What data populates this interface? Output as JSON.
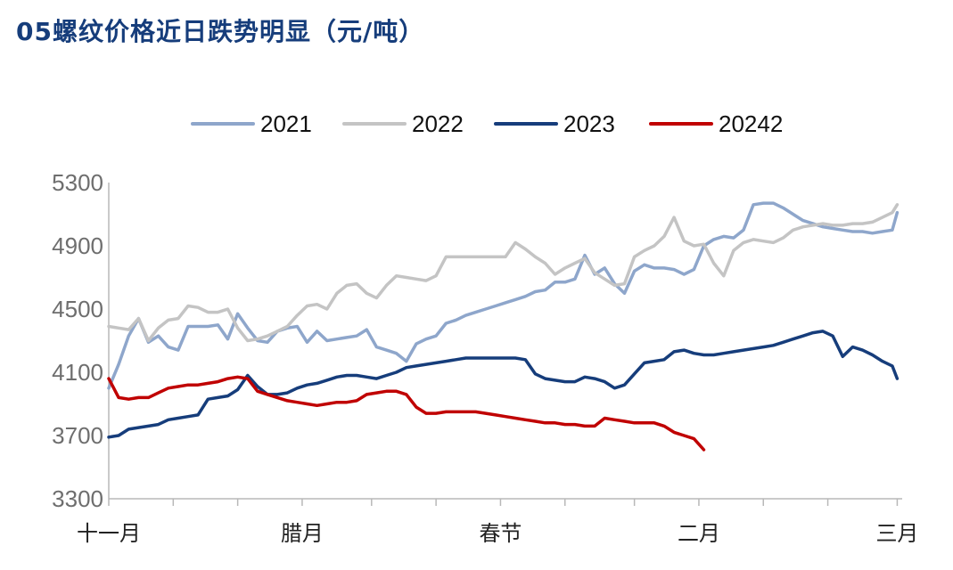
{
  "chart_data": {
    "type": "line",
    "title": "05螺纹价格近日跌势明显（元/吨）",
    "xlabel": "",
    "ylabel": "",
    "ylim": [
      3300,
      5300
    ],
    "yticks": [
      3300,
      3700,
      4100,
      4500,
      4900,
      5300
    ],
    "xlim": [
      0,
      160
    ],
    "xtick_positions": [
      0,
      13,
      26,
      39,
      53,
      66,
      79,
      92,
      106,
      119,
      132,
      145,
      159
    ],
    "xtick_labels": [
      {
        "x": 0,
        "label": "十一月"
      },
      {
        "x": 39,
        "label": "腊月"
      },
      {
        "x": 79,
        "label": "春节"
      },
      {
        "x": 119,
        "label": "二月"
      },
      {
        "x": 159,
        "label": "三月"
      }
    ],
    "legend_position": "top",
    "grid": false,
    "series": [
      {
        "name": "2021",
        "color": "#8ea6cb",
        "x": [
          0,
          2,
          4,
          6,
          8,
          10,
          12,
          14,
          16,
          18,
          20,
          22,
          24,
          26,
          28,
          30,
          32,
          34,
          36,
          38,
          40,
          42,
          44,
          46,
          48,
          50,
          52,
          54,
          56,
          58,
          60,
          62,
          64,
          66,
          68,
          70,
          72,
          74,
          76,
          78,
          80,
          82,
          84,
          86,
          88,
          90,
          92,
          94,
          96,
          98,
          100,
          102,
          104,
          106,
          108,
          110,
          112,
          114,
          116,
          118,
          120,
          122,
          124,
          126,
          128,
          130,
          132,
          134,
          136,
          138,
          140,
          142,
          144,
          146,
          148,
          150,
          152,
          154,
          156,
          158,
          159
        ],
        "values": [
          4000,
          4150,
          4330,
          4440,
          4290,
          4330,
          4260,
          4240,
          4390,
          4390,
          4390,
          4400,
          4310,
          4470,
          4380,
          4300,
          4290,
          4360,
          4380,
          4390,
          4290,
          4360,
          4300,
          4310,
          4320,
          4330,
          4370,
          4260,
          4240,
          4220,
          4170,
          4280,
          4310,
          4330,
          4410,
          4430,
          4460,
          4480,
          4500,
          4520,
          4540,
          4560,
          4580,
          4610,
          4620,
          4670,
          4670,
          4690,
          4840,
          4720,
          4760,
          4660,
          4600,
          4740,
          4780,
          4760,
          4760,
          4750,
          4720,
          4750,
          4900,
          4940,
          4960,
          4950,
          5000,
          5160,
          5170,
          5170,
          5140,
          5100,
          5060,
          5040,
          5020,
          5010,
          5000,
          4990,
          4990,
          4980,
          4990,
          5000,
          5110
        ]
      },
      {
        "name": "2022",
        "color": "#c4c4c4",
        "x": [
          0,
          2,
          4,
          6,
          8,
          10,
          12,
          14,
          16,
          18,
          20,
          22,
          24,
          26,
          28,
          30,
          32,
          34,
          36,
          38,
          40,
          42,
          44,
          46,
          48,
          50,
          52,
          54,
          56,
          58,
          60,
          62,
          64,
          66,
          68,
          70,
          72,
          74,
          76,
          78,
          80,
          82,
          84,
          86,
          88,
          90,
          92,
          94,
          96,
          98,
          100,
          102,
          104,
          106,
          108,
          110,
          112,
          114,
          116,
          118,
          120,
          122,
          124,
          126,
          128,
          130,
          132,
          134,
          136,
          138,
          140,
          142,
          144,
          146,
          148,
          150,
          152,
          154,
          156,
          158,
          159
        ],
        "values": [
          4390,
          4380,
          4370,
          4440,
          4300,
          4380,
          4430,
          4440,
          4520,
          4510,
          4480,
          4480,
          4500,
          4380,
          4300,
          4310,
          4330,
          4360,
          4390,
          4460,
          4520,
          4530,
          4500,
          4600,
          4650,
          4660,
          4600,
          4570,
          4650,
          4710,
          4700,
          4690,
          4680,
          4710,
          4830,
          4830,
          4830,
          4830,
          4830,
          4830,
          4830,
          4920,
          4880,
          4830,
          4790,
          4720,
          4760,
          4790,
          4820,
          4730,
          4690,
          4650,
          4660,
          4830,
          4870,
          4900,
          4960,
          5080,
          4930,
          4900,
          4910,
          4790,
          4710,
          4870,
          4920,
          4940,
          4930,
          4920,
          4950,
          5000,
          5020,
          5030,
          5040,
          5030,
          5030,
          5040,
          5040,
          5050,
          5080,
          5110,
          5160
        ]
      },
      {
        "name": "2023",
        "color": "#163d7b",
        "x": [
          0,
          2,
          4,
          6,
          8,
          10,
          12,
          14,
          16,
          18,
          20,
          22,
          24,
          26,
          28,
          30,
          32,
          34,
          36,
          38,
          40,
          42,
          44,
          46,
          48,
          50,
          52,
          54,
          56,
          58,
          60,
          62,
          64,
          66,
          68,
          70,
          72,
          74,
          76,
          78,
          80,
          82,
          84,
          86,
          88,
          90,
          92,
          94,
          96,
          98,
          100,
          102,
          104,
          106,
          108,
          110,
          112,
          114,
          116,
          118,
          120,
          122,
          124,
          126,
          128,
          130,
          132,
          134,
          136,
          138,
          140,
          142,
          144,
          146,
          148,
          150,
          152,
          154,
          156,
          158,
          159
        ],
        "values": [
          3690,
          3700,
          3740,
          3750,
          3760,
          3770,
          3800,
          3810,
          3820,
          3830,
          3930,
          3940,
          3950,
          3990,
          4080,
          4010,
          3960,
          3960,
          3970,
          4000,
          4020,
          4030,
          4050,
          4070,
          4080,
          4080,
          4070,
          4060,
          4080,
          4100,
          4130,
          4140,
          4150,
          4160,
          4170,
          4180,
          4190,
          4190,
          4190,
          4190,
          4190,
          4190,
          4180,
          4090,
          4060,
          4050,
          4040,
          4040,
          4070,
          4060,
          4040,
          4000,
          4020,
          4090,
          4160,
          4170,
          4180,
          4230,
          4240,
          4220,
          4210,
          4210,
          4220,
          4230,
          4240,
          4250,
          4260,
          4270,
          4290,
          4310,
          4330,
          4350,
          4360,
          4330,
          4200,
          4260,
          4240,
          4210,
          4170,
          4140,
          4060
        ]
      },
      {
        "name": "20242",
        "color": "#c00000",
        "x": [
          0,
          2,
          4,
          6,
          8,
          10,
          12,
          14,
          16,
          18,
          20,
          22,
          24,
          26,
          28,
          30,
          32,
          34,
          36,
          38,
          40,
          42,
          44,
          46,
          48,
          50,
          52,
          54,
          56,
          58,
          60,
          62,
          64,
          66,
          68,
          70,
          72,
          74,
          76,
          78,
          80,
          82,
          84,
          86,
          88,
          90,
          92,
          94,
          96,
          98,
          100,
          102,
          104,
          106,
          108,
          110,
          112,
          114,
          116,
          118,
          120
        ],
        "values": [
          4060,
          3940,
          3930,
          3940,
          3940,
          3970,
          4000,
          4010,
          4020,
          4020,
          4030,
          4040,
          4060,
          4070,
          4060,
          3980,
          3960,
          3940,
          3920,
          3910,
          3900,
          3890,
          3900,
          3910,
          3910,
          3920,
          3960,
          3970,
          3980,
          3980,
          3960,
          3880,
          3840,
          3840,
          3850,
          3850,
          3850,
          3850,
          3840,
          3830,
          3820,
          3810,
          3800,
          3790,
          3780,
          3780,
          3770,
          3770,
          3760,
          3760,
          3810,
          3800,
          3790,
          3780,
          3780,
          3780,
          3760,
          3720,
          3700,
          3680,
          3610
        ]
      }
    ]
  }
}
